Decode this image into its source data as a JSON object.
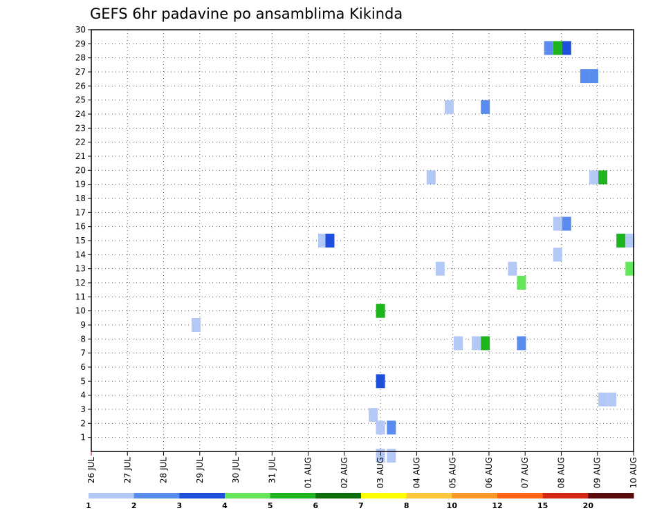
{
  "chart_data": {
    "type": "heatmap",
    "title": "GEFS 6hr padavine po ansamblima Kikinda",
    "xlabel": "",
    "ylabel": "",
    "x_ticks": [
      "26 JUL",
      "27 JUL",
      "28 JUL",
      "29 JUL",
      "30 JUL",
      "31 JUL",
      "01 AUG",
      "02 AUG",
      "03 AUG",
      "04 AUG",
      "05 AUG",
      "06 AUG",
      "07 AUG",
      "08 AUG",
      "09 AUG",
      "10 AUG"
    ],
    "y_ticks": [
      "1",
      "2",
      "3",
      "4",
      "5",
      "6",
      "7",
      "8",
      "9",
      "10",
      "11",
      "12",
      "13",
      "14",
      "15",
      "16",
      "17",
      "18",
      "19",
      "20",
      "21",
      "22",
      "23",
      "24",
      "25",
      "26",
      "27",
      "28",
      "29",
      "30"
    ],
    "xlim": [
      0,
      15
    ],
    "ylim": [
      0,
      30
    ],
    "grid": true,
    "colorbar": {
      "labels": [
        "1",
        "2",
        "3",
        "4",
        "5",
        "6",
        "7",
        "8",
        "10",
        "12",
        "15",
        "20"
      ],
      "colors": [
        "#b4c8f5",
        "#5a8cf0",
        "#1e50dc",
        "#64e65a",
        "#1eb41e",
        "#0a6e0a",
        "#ffff00",
        "#ffc83c",
        "#ff9628",
        "#ff6414",
        "#d22814",
        "#5a0a0a"
      ]
    },
    "cells": [
      {
        "day": 2.9,
        "member": 9,
        "class": 0
      },
      {
        "day": 6.4,
        "member": 15,
        "class": 0
      },
      {
        "day": 6.6,
        "member": 15,
        "class": 2
      },
      {
        "day": 7.8,
        "member": 2.6,
        "class": 0
      },
      {
        "day": 8.0,
        "member": 10,
        "class": 4
      },
      {
        "day": 8.0,
        "member": 5,
        "class": 2
      },
      {
        "day": 8.0,
        "member": 1.7,
        "class": 0
      },
      {
        "day": 8.3,
        "member": 1.7,
        "class": 1
      },
      {
        "day": 8.0,
        "member": -0.3,
        "class": 0
      },
      {
        "day": 8.3,
        "member": -0.3,
        "class": 0
      },
      {
        "day": 9.4,
        "member": 19.5,
        "class": 0
      },
      {
        "day": 9.65,
        "member": 13,
        "class": 0
      },
      {
        "day": 9.9,
        "member": 24.5,
        "class": 0
      },
      {
        "day": 10.15,
        "member": 7.7,
        "class": 0
      },
      {
        "day": 10.65,
        "member": 7.7,
        "class": 0
      },
      {
        "day": 10.9,
        "member": 7.7,
        "class": 4
      },
      {
        "day": 10.9,
        "member": 24.5,
        "class": 1
      },
      {
        "day": 11.65,
        "member": 13,
        "class": 0
      },
      {
        "day": 11.9,
        "member": 12,
        "class": 3
      },
      {
        "day": 11.9,
        "member": 7.7,
        "class": 1
      },
      {
        "day": 12.65,
        "member": 28.7,
        "class": 1
      },
      {
        "day": 12.9,
        "member": 28.7,
        "class": 4
      },
      {
        "day": 13.15,
        "member": 28.7,
        "class": 2
      },
      {
        "day": 13.65,
        "member": 26.7,
        "class": 1
      },
      {
        "day": 13.9,
        "member": 26.7,
        "class": 1
      },
      {
        "day": 12.9,
        "member": 16.2,
        "class": 0
      },
      {
        "day": 13.15,
        "member": 16.2,
        "class": 1
      },
      {
        "day": 12.9,
        "member": 14,
        "class": 0
      },
      {
        "day": 13.9,
        "member": 19.5,
        "class": 0
      },
      {
        "day": 14.15,
        "member": 19.5,
        "class": 4
      },
      {
        "day": 14.15,
        "member": 3.7,
        "class": 0
      },
      {
        "day": 14.4,
        "member": 3.7,
        "class": 0
      },
      {
        "day": 14.65,
        "member": 15,
        "class": 4
      },
      {
        "day": 14.9,
        "member": 15,
        "class": 0
      },
      {
        "day": 14.9,
        "member": 13,
        "class": 3
      }
    ]
  }
}
